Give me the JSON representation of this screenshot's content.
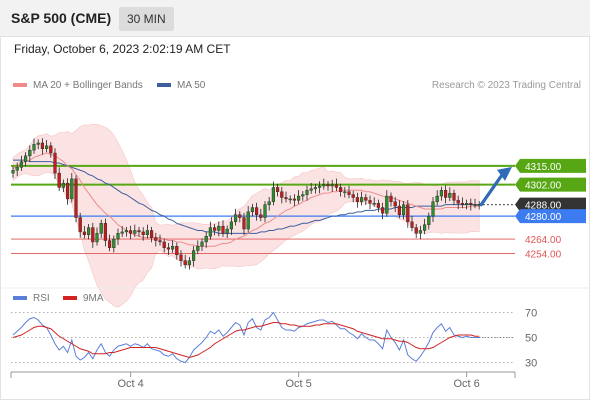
{
  "header": {
    "title": "S&P 500 (CME)",
    "interval": "30 MIN"
  },
  "datetime": "Friday, October 6, 2023 2:02:19 AM CET",
  "legend": {
    "bollinger_label": "MA 20 + Bollinger Bands",
    "ma50_label": "MA 50",
    "rsi_label": "RSI",
    "rsi_ma_label": "9MA"
  },
  "credit": "Research © 2023 Trading Central",
  "colors": {
    "candle_up": "#2e8b2e",
    "candle_down": "#c21d1d",
    "ma20": "#ec8c8c",
    "band_fill": "#fbd9d9",
    "ma50": "#3d5f9e",
    "resistance": "#56a713",
    "support_blue": "#3d7bf0",
    "support_red": "#e05555",
    "current": "#333333",
    "arrow": "#2f6bb6",
    "rsi": "#5b7fd8",
    "rsi_ma": "#d22222"
  },
  "chart_data": [
    {
      "type": "candlestick",
      "x_tick_labels": [
        "Oct 4",
        "Oct 5",
        "Oct 6"
      ],
      "ylim": [
        4232,
        4347
      ],
      "levels": [
        {
          "label": "4315.00",
          "value": 4315,
          "kind": "resistance"
        },
        {
          "label": "4302.00",
          "value": 4302,
          "kind": "resistance"
        },
        {
          "label": "4288.00",
          "value": 4288,
          "kind": "current"
        },
        {
          "label": "4280.00",
          "value": 4280,
          "kind": "support_blue"
        },
        {
          "label": "4264.00",
          "value": 4264,
          "kind": "support_red"
        },
        {
          "label": "4254.00",
          "value": 4254,
          "kind": "support_red"
        }
      ],
      "close": [
        4312,
        4314,
        4318,
        4322,
        4326,
        4330,
        4331,
        4327,
        4329,
        4324,
        4310,
        4300,
        4303,
        4292,
        4306,
        4279,
        4269,
        4267,
        4272,
        4262,
        4268,
        4275,
        4263,
        4258,
        4264,
        4268,
        4269,
        4270,
        4268,
        4270,
        4269,
        4267,
        4270,
        4265,
        4263,
        4262,
        4258,
        4257,
        4259,
        4253,
        4249,
        4246,
        4249,
        4256,
        4259,
        4262,
        4266,
        4272,
        4270,
        4273,
        4268,
        4271,
        4276,
        4281,
        4279,
        4271,
        4283,
        4286,
        4281,
        4279,
        4288,
        4290,
        4300,
        4297,
        4293,
        4292,
        4292,
        4291,
        4294,
        4295,
        4298,
        4299,
        4300,
        4301,
        4302,
        4301,
        4302,
        4300,
        4297,
        4297,
        4295,
        4293,
        4290,
        4293,
        4291,
        4289,
        4289,
        4286,
        4282,
        4294,
        4290,
        4287,
        4281,
        4288,
        4276,
        4272,
        4268,
        4270,
        4274,
        4280,
        4290,
        4294,
        4298,
        4293,
        4296,
        4291,
        4289,
        4288,
        4289,
        4288,
        4288,
        4288
      ],
      "ma20": [
        4313,
        4315,
        4317,
        4318,
        4319,
        4321,
        4322,
        4323,
        4324,
        4323,
        4322,
        4320,
        4318,
        4315,
        4313,
        4309,
        4305,
        4300,
        4296,
        4292,
        4288,
        4285,
        4282,
        4280,
        4277,
        4274,
        4272,
        4270,
        4268,
        4267,
        4266,
        4265,
        4265,
        4265,
        4265,
        4265,
        4264,
        4263,
        4263,
        4262,
        4262,
        4261,
        4260,
        4260,
        4259,
        4259,
        4259,
        4259,
        4259,
        4260,
        4261,
        4261,
        4262,
        4264,
        4265,
        4266,
        4268,
        4270,
        4271,
        4273,
        4275,
        4276,
        4278,
        4280,
        4282,
        4284,
        4285,
        4287,
        4288,
        4290,
        4291,
        4293,
        4294,
        4295,
        4296,
        4296,
        4297,
        4297,
        4298,
        4298,
        4298,
        4298,
        4298,
        4298,
        4297,
        4297,
        4296,
        4295,
        4294,
        4293,
        4293,
        4292,
        4291,
        4290,
        4289,
        4288,
        4287,
        4286,
        4285,
        4285,
        4285,
        4285,
        4285,
        4286,
        4286,
        4286,
        4286,
        4286,
        4286,
        4287,
        4287,
        4287
      ],
      "ma50": [
        4319,
        4319,
        4319,
        4319,
        4318,
        4318,
        4318,
        4318,
        4318,
        4318,
        4317,
        4317,
        4316,
        4315,
        4314,
        4313,
        4312,
        4311,
        4309,
        4308,
        4306,
        4305,
        4303,
        4302,
        4300,
        4298,
        4296,
        4295,
        4293,
        4291,
        4289,
        4288,
        4286,
        4284,
        4283,
        4281,
        4280,
        4278,
        4277,
        4275,
        4274,
        4273,
        4272,
        4271,
        4270,
        4270,
        4269,
        4269,
        4269,
        4268,
        4268,
        4268,
        4268,
        4268,
        4268,
        4268,
        4268,
        4268,
        4268,
        4269,
        4269,
        4270,
        4270,
        4271,
        4271,
        4272,
        4273,
        4273,
        4274,
        4275,
        4275,
        4276,
        4277,
        4277,
        4278,
        4279,
        4280,
        4280,
        4281,
        4281,
        4282,
        4282,
        4283,
        4283,
        4284,
        4284,
        4284,
        4285,
        4285,
        4285,
        4285,
        4286,
        4286,
        4286,
        4286,
        4286,
        4287,
        4287,
        4287,
        4287,
        4287,
        4287,
        4287,
        4288,
        4288,
        4288,
        4288,
        4288,
        4288,
        4288,
        4288,
        4288
      ]
    },
    {
      "type": "line",
      "name": "RSI",
      "y_tick_labels": [
        "70",
        "50",
        "30"
      ],
      "ylim": [
        20,
        80
      ],
      "rsi": [
        52,
        55,
        58,
        62,
        65,
        66,
        64,
        60,
        58,
        52,
        45,
        40,
        43,
        38,
        48,
        35,
        32,
        34,
        38,
        33,
        40,
        45,
        38,
        35,
        40,
        43,
        44,
        45,
        43,
        45,
        44,
        42,
        45,
        41,
        40,
        39,
        36,
        35,
        37,
        33,
        31,
        30,
        34,
        40,
        43,
        46,
        50,
        55,
        53,
        56,
        51,
        54,
        58,
        62,
        60,
        52,
        62,
        65,
        58,
        56,
        64,
        66,
        70,
        64,
        58,
        56,
        56,
        55,
        58,
        59,
        61,
        62,
        63,
        64,
        64,
        62,
        63,
        60,
        57,
        57,
        54,
        52,
        49,
        53,
        50,
        48,
        48,
        45,
        41,
        56,
        50,
        46,
        40,
        48,
        36,
        33,
        31,
        35,
        40,
        46,
        54,
        58,
        61,
        55,
        58,
        52,
        51,
        50,
        51,
        50,
        50,
        50
      ],
      "rsi_ma": [
        50,
        51,
        52,
        54,
        56,
        58,
        59,
        59,
        58,
        57,
        54,
        51,
        49,
        47,
        45,
        43,
        41,
        40,
        39,
        37,
        37,
        37,
        37,
        38,
        38,
        39,
        40,
        41,
        42,
        42,
        42,
        42,
        42,
        42,
        42,
        41,
        40,
        39,
        38,
        37,
        36,
        35,
        34,
        35,
        36,
        38,
        40,
        42,
        45,
        47,
        49,
        51,
        53,
        55,
        56,
        56,
        57,
        58,
        59,
        59,
        60,
        61,
        62,
        62,
        61,
        61,
        60,
        60,
        59,
        59,
        59,
        59,
        60,
        60,
        61,
        61,
        61,
        61,
        60,
        59,
        58,
        57,
        55,
        54,
        53,
        52,
        51,
        50,
        49,
        49,
        49,
        48,
        47,
        47,
        46,
        44,
        42,
        41,
        41,
        41,
        42,
        44,
        46,
        48,
        50,
        51,
        52,
        52,
        52,
        52,
        51,
        51
      ]
    }
  ]
}
